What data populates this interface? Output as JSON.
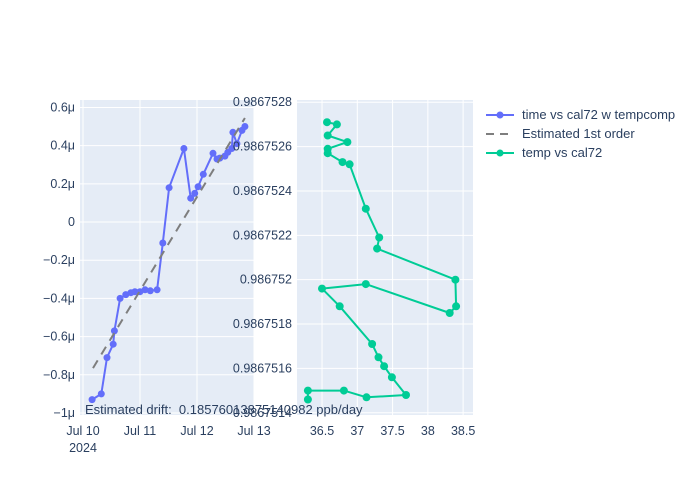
{
  "figure": {
    "plot_bgcolor": "#e5ecf6",
    "grid_color": "#ffffff",
    "text_color": "#2a3f5f",
    "accent_purple": "#636efa",
    "accent_green": "#00cc96",
    "accent_gray": "#7e7e7e"
  },
  "annotation": {
    "text": "Estimated drift:  0.18576013875140982 ppb/day"
  },
  "legend": {
    "items": [
      {
        "label": "time vs cal72 w tempcomp",
        "color": "#636efa",
        "style": "line-marker"
      },
      {
        "label": "Estimated 1st order",
        "color": "#7e7e7e",
        "style": "dashed"
      },
      {
        "label": "temp vs cal72",
        "color": "#00cc96",
        "style": "line-marker"
      }
    ]
  },
  "chart_data": [
    {
      "type": "line",
      "name": "time-vs-cal72",
      "title": "",
      "xlabel": "",
      "ylabel": "",
      "grid": true,
      "x_unit": "days since Jul 10 2024 00:00",
      "xlim": [
        -0.053,
        3.0
      ],
      "ylim": [
        -1.0105,
        0.639
      ],
      "x_ticks": [
        {
          "pos": 0,
          "label": "Jul 10",
          "sublabel": "2024"
        },
        {
          "pos": 1,
          "label": "Jul 11"
        },
        {
          "pos": 2,
          "label": "Jul 12"
        },
        {
          "pos": 3,
          "label": "Jul 13"
        }
      ],
      "y_ticks": [
        {
          "pos": 0.6,
          "label": "0.6μ"
        },
        {
          "pos": 0.4,
          "label": "0.4μ"
        },
        {
          "pos": 0.2,
          "label": "0.2μ"
        },
        {
          "pos": 0.0,
          "label": "0"
        },
        {
          "pos": -0.2,
          "label": "−0.2μ"
        },
        {
          "pos": -0.4,
          "label": "−0.4μ"
        },
        {
          "pos": -0.6,
          "label": "−0.6μ"
        },
        {
          "pos": -0.8,
          "label": "−0.8μ"
        },
        {
          "pos": -1.0,
          "label": "−1μ"
        }
      ],
      "series": [
        {
          "name": "time vs cal72 w tempcomp",
          "color": "#636efa",
          "mode": "lines+markers",
          "marker_size": 3.5,
          "x": [
            0.16,
            0.32,
            0.42,
            0.53,
            0.55,
            0.65,
            0.75,
            0.84,
            0.91,
            1.0,
            1.09,
            1.18,
            1.3,
            1.4,
            1.51,
            1.77,
            1.89,
            1.96,
            2.02,
            2.11,
            2.28,
            2.35,
            2.4,
            2.49,
            2.54,
            2.61,
            2.63,
            2.7,
            2.79,
            2.84
          ],
          "y": [
            -0.93,
            -0.9,
            -0.71,
            -0.64,
            -0.57,
            -0.4,
            -0.38,
            -0.37,
            -0.365,
            -0.365,
            -0.355,
            -0.36,
            -0.355,
            -0.11,
            0.18,
            0.385,
            0.125,
            0.15,
            0.185,
            0.25,
            0.36,
            0.33,
            0.335,
            0.345,
            0.365,
            0.385,
            0.47,
            0.41,
            0.48,
            0.5
          ]
        },
        {
          "name": "Estimated 1st order",
          "color": "#7e7e7e",
          "mode": "dashed",
          "x": [
            0.175,
            2.84
          ],
          "y": [
            -0.765,
            0.545
          ]
        }
      ]
    },
    {
      "type": "line",
      "name": "temp-vs-cal72",
      "title": "",
      "xlabel": "",
      "ylabel": "",
      "grid": true,
      "x_unit": "temperature",
      "xlim": [
        36.145,
        38.64
      ],
      "ylim": [
        0.98675139,
        0.98675281
      ],
      "x_ticks": [
        {
          "pos": 36.5,
          "label": "36.5"
        },
        {
          "pos": 37,
          "label": "37"
        },
        {
          "pos": 37.5,
          "label": "37.5"
        },
        {
          "pos": 38,
          "label": "38"
        },
        {
          "pos": 38.5,
          "label": "38.5"
        }
      ],
      "y_ticks": [
        {
          "pos": 0.9867528,
          "label": "0.9867528"
        },
        {
          "pos": 0.9867526,
          "label": "0.9867526"
        },
        {
          "pos": 0.9867524,
          "label": "0.9867524"
        },
        {
          "pos": 0.9867522,
          "label": "0.9867522"
        },
        {
          "pos": 0.986752,
          "label": "0.986752"
        },
        {
          "pos": 0.9867518,
          "label": "0.9867518"
        },
        {
          "pos": 0.9867516,
          "label": "0.9867516"
        },
        {
          "pos": 0.9867514,
          "label": "0.9867514"
        }
      ],
      "series": [
        {
          "name": "temp vs cal72",
          "color": "#00cc96",
          "mode": "lines+markers",
          "marker_size": 4,
          "x": [
            36.57,
            36.71,
            36.58,
            36.86,
            36.58,
            36.58,
            36.79,
            36.89,
            37.12,
            37.31,
            37.28,
            38.39,
            38.4,
            38.31,
            37.12,
            36.5,
            36.75,
            37.21,
            37.3,
            37.38,
            37.49,
            37.69,
            37.13,
            36.81,
            36.3,
            36.3
          ],
          "y": [
            0.98675271,
            0.9867527,
            0.98675265,
            0.98675262,
            0.98675259,
            0.98675257,
            0.98675253,
            0.98675252,
            0.98675232,
            0.98675219,
            0.98675214,
            0.986752,
            0.98675188,
            0.98675185,
            0.98675198,
            0.98675196,
            0.98675188,
            0.98675171,
            0.98675165,
            0.98675161,
            0.98675156,
            0.98675148,
            0.98675147,
            0.9867515,
            0.9867515,
            0.98675146
          ]
        }
      ]
    }
  ]
}
